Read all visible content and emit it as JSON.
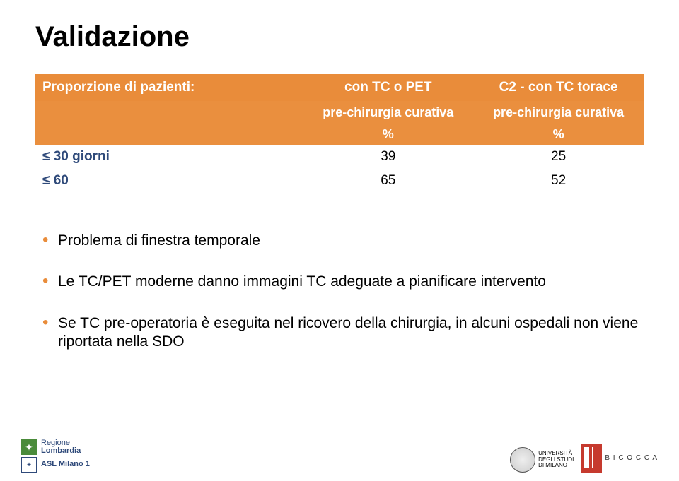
{
  "title": "Validazione",
  "table": {
    "header_row1": {
      "c0": "Proporzione di pazienti:",
      "c1": "con TC o PET",
      "c2": "C2 - con  TC torace"
    },
    "header_row2": {
      "c1": "pre-chirurgia curativa",
      "c2": "pre-chirurgia curativa"
    },
    "header_row3": {
      "c1": "%",
      "c2": "%"
    },
    "rows": [
      {
        "label": "≤ 30 giorni",
        "v1": "39",
        "v2": "25"
      },
      {
        "label": "≤ 60",
        "v1": "65",
        "v2": "52"
      }
    ],
    "colors": {
      "header_bg": "#e98c3a",
      "header_fg": "#ffffff",
      "row_label_fg": "#2f4a7a"
    }
  },
  "bullets": [
    "Problema di finestra temporale",
    "Le TC/PET moderne danno immagini TC adeguate a pianificare intervento",
    "Se TC pre-operatoria è eseguita nel ricovero della chirurgia, in alcuni ospedali non viene riportata nella SDO"
  ],
  "footer": {
    "regione": {
      "line1": "Regione",
      "line2": "Lombardia"
    },
    "asl": "ASL Milano 1",
    "uni_milano": "UNIVERSITÀ\nDEGLI STUDI\nDI MILANO",
    "uni_bicocca": "B I C O C C A"
  }
}
